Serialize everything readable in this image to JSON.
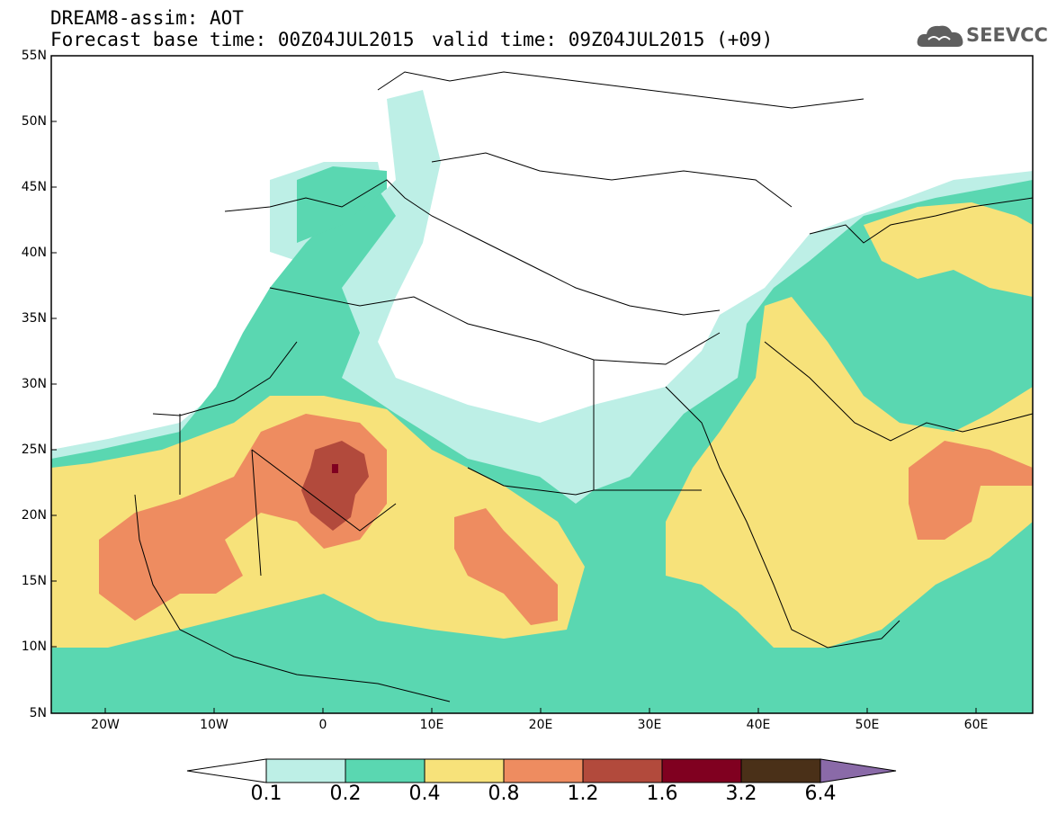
{
  "header": {
    "title": "DREAM8-assim: AOT",
    "base_time": "Forecast base time: 00Z04JUL2015",
    "valid_time": "valid time: 09Z04JUL2015 (+09)"
  },
  "logo": {
    "text": "SEEVCCC",
    "icon": "cloud-icon"
  },
  "map": {
    "variable": "AOT",
    "region": "North Africa / Middle East / Mediterranean",
    "lat_ticks": [
      "55N",
      "50N",
      "45N",
      "40N",
      "35N",
      "30N",
      "25N",
      "20N",
      "15N",
      "10N",
      "5N"
    ],
    "lon_ticks": [
      "20W",
      "10W",
      "0",
      "10E",
      "20E",
      "30E",
      "40E",
      "50E",
      "60E"
    ]
  },
  "colorbar": {
    "levels": [
      "0.1",
      "0.2",
      "0.4",
      "0.8",
      "1.2",
      "1.6",
      "3.2",
      "6.4"
    ],
    "colors": [
      "#ffffff",
      "#bdefe6",
      "#5ad7b1",
      "#f7e27a",
      "#ee8c60",
      "#b24a3c",
      "#800020",
      "#4a3018",
      "#8a6aa8"
    ]
  }
}
